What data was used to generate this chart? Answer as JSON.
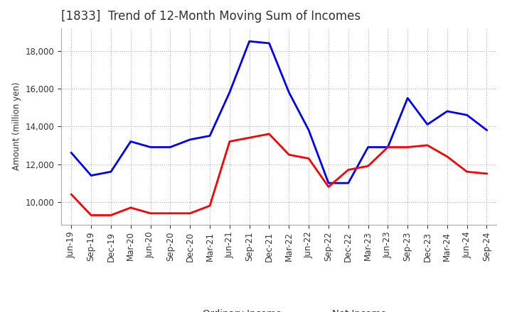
{
  "title": "[1833]  Trend of 12-Month Moving Sum of Incomes",
  "ylabel": "Amount (million yen)",
  "x_labels": [
    "Jun-19",
    "Sep-19",
    "Dec-19",
    "Mar-20",
    "Jun-20",
    "Sep-20",
    "Dec-20",
    "Mar-21",
    "Jun-21",
    "Sep-21",
    "Dec-21",
    "Mar-22",
    "Jun-22",
    "Sep-22",
    "Dec-22",
    "Mar-23",
    "Jun-23",
    "Sep-23",
    "Dec-23",
    "Mar-24",
    "Jun-24",
    "Sep-24"
  ],
  "ordinary_income": [
    12600,
    11400,
    11600,
    13200,
    12900,
    12900,
    13300,
    13500,
    15800,
    18500,
    18400,
    15800,
    13800,
    11000,
    11000,
    12900,
    12900,
    15500,
    14100,
    14800,
    14600,
    13800
  ],
  "net_income": [
    10400,
    9300,
    9300,
    9700,
    9400,
    9400,
    9400,
    9800,
    13200,
    13400,
    13600,
    12500,
    12300,
    10800,
    11700,
    11900,
    12900,
    12900,
    13000,
    12400,
    11600,
    11500
  ],
  "ordinary_color": "#0000ff",
  "net_color": "#ff0000",
  "ylim": [
    8800,
    19200
  ],
  "yticks": [
    10000,
    12000,
    14000,
    16000,
    18000
  ],
  "grid_color": "#aaaaaa",
  "background_color": "#ffffff",
  "title_fontsize": 12,
  "title_color": "#333333",
  "axis_fontsize": 8.5,
  "legend_fontsize": 9.5
}
